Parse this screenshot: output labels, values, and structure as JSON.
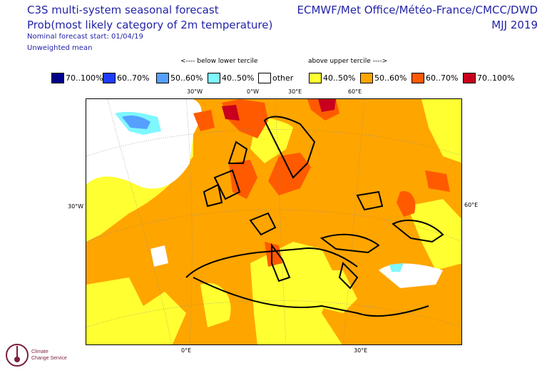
{
  "header": {
    "title_line1": "C3S multi-system seasonal forecast",
    "title_line2": "Prob(most likely category of 2m temperature)",
    "nominal_start": "Nominal forecast start: 01/04/19",
    "weighting": "Unweighted mean",
    "source": "ECMWF/Met Office/Météo-France/CMCC/DWD",
    "period": "MJJ 2019"
  },
  "tercile_labels": {
    "below": "<---- below lower tercile",
    "above": "above upper tercile ---->"
  },
  "legend": [
    {
      "label": "70..100%",
      "color": "#00008b"
    },
    {
      "label": "60..70%",
      "color": "#1e3cff"
    },
    {
      "label": "50..60%",
      "color": "#55a0ff"
    },
    {
      "label": "40..50%",
      "color": "#7ff7ff"
    },
    {
      "label": "other",
      "color": "#ffffff"
    },
    {
      "label": "40..50%",
      "color": "#ffff32"
    },
    {
      "label": "50..60%",
      "color": "#ffa500"
    },
    {
      "label": "60..70%",
      "color": "#ff5a00"
    },
    {
      "label": "70..100%",
      "color": "#c8001e"
    }
  ],
  "axis_labels": {
    "top": [
      "30°W",
      "0°W",
      "30°E",
      "60°E"
    ],
    "left": [
      "30°W"
    ],
    "right": [
      "60°E"
    ],
    "bottom": [
      "0°E",
      "30°E"
    ]
  },
  "logo": {
    "text_line1": "Climate",
    "text_line2": "Change Service"
  }
}
